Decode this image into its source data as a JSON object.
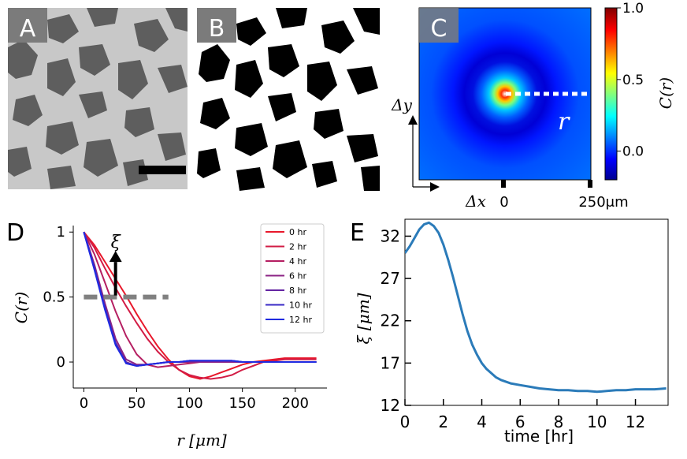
{
  "panels": {
    "A": {
      "label": "A"
    },
    "B": {
      "label": "B"
    },
    "C": {
      "label": "C"
    },
    "D": {
      "label": "D"
    },
    "E": {
      "label": "E"
    }
  },
  "colors": {
    "micro_bg": "#c8c8c8",
    "micro_blob": "#5e5e5e",
    "panel_label_bg": "#7b7b7b",
    "threshold_line": "#808080",
    "e_line": "#2b7bb9"
  },
  "chart_data": [
    {
      "panel": "C",
      "type": "heatmap",
      "title": "",
      "colorbar": {
        "label": "C(r)",
        "ticks": [
          "1.0",
          "0.5",
          "0.0"
        ],
        "range": [
          -0.2,
          1.0
        ]
      },
      "annotations": {
        "r_label": "r",
        "dx_label": "Δx",
        "dy_label": "Δy",
        "x_tick_0": "0",
        "x_tick_end": "250μm"
      }
    },
    {
      "panel": "D",
      "type": "line",
      "xlabel": "r [μm]",
      "ylabel": "C(r)",
      "xlim": [
        -10,
        230
      ],
      "ylim": [
        -0.2,
        1.05
      ],
      "xticks": [
        "0",
        "50",
        "100",
        "150",
        "200"
      ],
      "yticks": [
        "0",
        "0.5",
        "1"
      ],
      "threshold": {
        "y": 0.5,
        "x_range": [
          0,
          80
        ],
        "annotation": "ξ"
      },
      "legend_position": "top-right",
      "series": [
        {
          "name": "0 hr",
          "color": "#e8182b",
          "x": [
            0,
            10,
            20,
            30,
            40,
            50,
            60,
            70,
            80,
            90,
            100,
            110,
            120,
            130,
            140,
            150,
            160,
            170,
            180,
            190,
            200,
            210,
            220
          ],
          "y": [
            1.0,
            0.9,
            0.77,
            0.64,
            0.51,
            0.37,
            0.24,
            0.12,
            0.02,
            -0.06,
            -0.11,
            -0.13,
            -0.11,
            -0.08,
            -0.05,
            -0.02,
            0.0,
            0.01,
            0.02,
            0.03,
            0.03,
            0.03,
            0.03
          ]
        },
        {
          "name": "2 hr",
          "color": "#d21c45",
          "x": [
            0,
            10,
            20,
            30,
            40,
            50,
            60,
            70,
            80,
            90,
            100,
            110,
            120,
            130,
            140,
            150,
            160,
            170,
            180,
            190,
            200,
            210,
            220
          ],
          "y": [
            1.0,
            0.88,
            0.72,
            0.57,
            0.43,
            0.3,
            0.18,
            0.08,
            0.0,
            -0.06,
            -0.1,
            -0.12,
            -0.13,
            -0.12,
            -0.1,
            -0.06,
            -0.03,
            0.0,
            0.01,
            0.02,
            0.02,
            0.02,
            0.02
          ]
        },
        {
          "name": "4 hr",
          "color": "#b51f62",
          "x": [
            0,
            10,
            20,
            30,
            40,
            50,
            60,
            70,
            80,
            90,
            100,
            110,
            120,
            130,
            140,
            150,
            160,
            170,
            180,
            190,
            200,
            210,
            220
          ],
          "y": [
            1.0,
            0.83,
            0.61,
            0.39,
            0.2,
            0.06,
            -0.02,
            -0.04,
            -0.03,
            -0.02,
            -0.01,
            0.0,
            0.0,
            0.0,
            0.0,
            0.0,
            0.0,
            0.0,
            0.0,
            0.0,
            0.0,
            0.0,
            0.0
          ]
        },
        {
          "name": "6 hr",
          "color": "#8c2486",
          "x": [
            0,
            10,
            20,
            30,
            40,
            50,
            60,
            70,
            80,
            90,
            100,
            110,
            120,
            130,
            140,
            150,
            160,
            170,
            180,
            190,
            200,
            210,
            220
          ],
          "y": [
            1.0,
            0.75,
            0.45,
            0.18,
            0.02,
            -0.02,
            -0.02,
            -0.01,
            0.0,
            0.0,
            0.0,
            0.0,
            0.0,
            0.0,
            0.0,
            0.0,
            0.0,
            0.0,
            0.0,
            0.0,
            0.0,
            0.0,
            0.0
          ]
        },
        {
          "name": "8 hr",
          "color": "#6424a2",
          "x": [
            0,
            10,
            20,
            30,
            40,
            50,
            60,
            70,
            80,
            90,
            100,
            110,
            120,
            130,
            140,
            150,
            160,
            170,
            180,
            190,
            200,
            210,
            220
          ],
          "y": [
            1.0,
            0.73,
            0.42,
            0.15,
            0.0,
            -0.03,
            -0.02,
            -0.01,
            0.0,
            0.0,
            0.01,
            0.01,
            0.01,
            0.01,
            0.01,
            0.0,
            0.0,
            0.0,
            0.0,
            0.0,
            0.0,
            0.0,
            0.0
          ]
        },
        {
          "name": "10 hr",
          "color": "#3a2ac6",
          "x": [
            0,
            10,
            20,
            30,
            40,
            50,
            60,
            70,
            80,
            90,
            100,
            110,
            120,
            130,
            140,
            150,
            160,
            170,
            180,
            190,
            200,
            210,
            220
          ],
          "y": [
            1.0,
            0.72,
            0.41,
            0.14,
            -0.01,
            -0.03,
            -0.02,
            -0.01,
            0.0,
            0.0,
            0.01,
            0.01,
            0.01,
            0.01,
            0.01,
            0.0,
            0.0,
            0.0,
            0.0,
            0.0,
            0.0,
            0.0,
            0.0
          ]
        },
        {
          "name": "12 hr",
          "color": "#1f2ae0",
          "x": [
            0,
            10,
            20,
            30,
            40,
            50,
            60,
            70,
            80,
            90,
            100,
            110,
            120,
            130,
            140,
            150,
            160,
            170,
            180,
            190,
            200,
            210,
            220
          ],
          "y": [
            1.0,
            0.71,
            0.4,
            0.13,
            -0.01,
            -0.03,
            -0.02,
            -0.01,
            0.0,
            0.0,
            0.01,
            0.01,
            0.01,
            0.01,
            0.01,
            0.0,
            0.0,
            0.0,
            0.0,
            0.0,
            0.0,
            0.0,
            0.0
          ]
        }
      ]
    },
    {
      "panel": "E",
      "type": "line",
      "xlabel": "time [hr]",
      "ylabel": "ξ [μm]",
      "xlim": [
        0,
        13.7
      ],
      "ylim": [
        12,
        34
      ],
      "xticks": [
        "0",
        "2",
        "4",
        "6",
        "8",
        "10",
        "12"
      ],
      "yticks": [
        "12",
        "17",
        "22",
        "27",
        "32"
      ],
      "series": [
        {
          "name": "ξ",
          "x": [
            0,
            0.25,
            0.5,
            0.75,
            1.0,
            1.25,
            1.5,
            1.75,
            2.0,
            2.25,
            2.5,
            2.75,
            3.0,
            3.25,
            3.5,
            3.75,
            4.0,
            4.25,
            4.5,
            4.75,
            5.0,
            5.5,
            6.0,
            6.5,
            7.0,
            7.5,
            8.0,
            8.5,
            9.0,
            9.5,
            10.0,
            10.5,
            11.0,
            11.5,
            12.0,
            12.5,
            13.0,
            13.6
          ],
          "y": [
            30.0,
            30.8,
            31.8,
            32.8,
            33.4,
            33.6,
            33.2,
            32.4,
            31.0,
            29.2,
            27.2,
            25.0,
            22.8,
            20.8,
            19.2,
            18.0,
            17.0,
            16.3,
            15.8,
            15.3,
            15.0,
            14.6,
            14.4,
            14.2,
            14.0,
            13.9,
            13.8,
            13.8,
            13.7,
            13.7,
            13.6,
            13.7,
            13.8,
            13.8,
            13.9,
            13.9,
            13.9,
            14.0
          ]
        }
      ]
    }
  ]
}
